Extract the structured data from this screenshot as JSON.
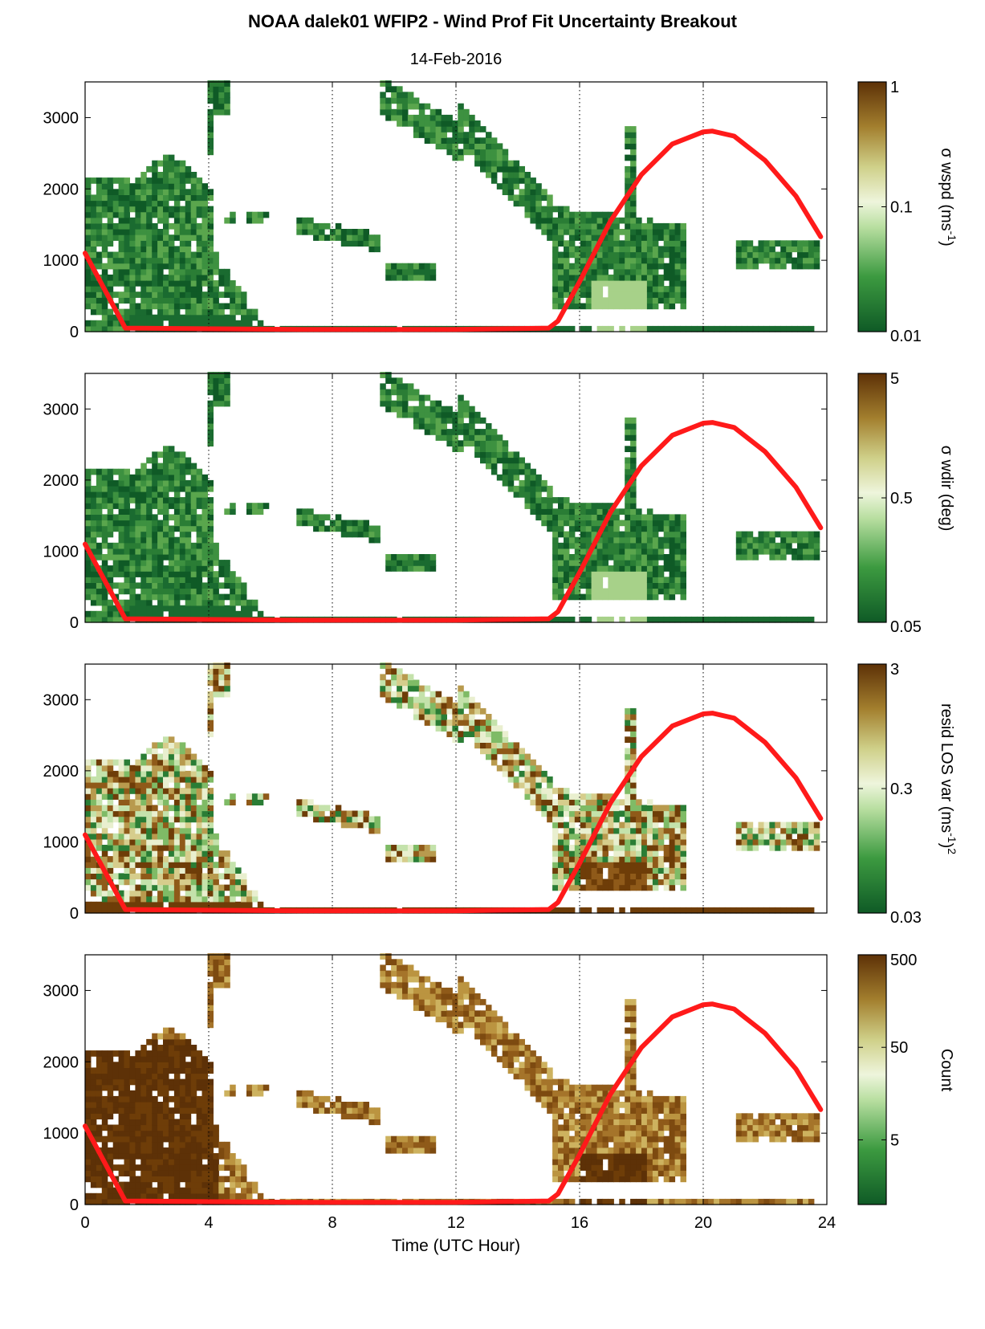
{
  "title": "NOAA dalek01 WFIP2 - Wind Prof Fit Uncertainty Breakout",
  "subtitle": "14-Feb-2016",
  "colors": {
    "dark_green": "#1a6b30",
    "light_green": "#e4f1d2",
    "dark_brown": "#6e3d08",
    "curve_red": "#ff1a1a"
  },
  "chart_data": [
    {
      "type": "heatmap",
      "xlabel": "",
      "ylabel": "",
      "xlim": [
        0,
        24
      ],
      "ylim": [
        0,
        3500
      ],
      "x_ticks": [
        0,
        4,
        8,
        12,
        16,
        20,
        24
      ],
      "y_ticks": [
        0,
        1000,
        2000,
        3000
      ],
      "colorbar": {
        "label": "σ wspd (ms",
        "exp": "-1",
        "tail": ")",
        "scale": "log",
        "min": 0.01,
        "max": 1,
        "ticks": [
          "0.01",
          "0.1",
          "1"
        ]
      },
      "tone": "green",
      "curve": {
        "color": "#ff1a1a",
        "x": [
          0,
          1.3,
          7,
          12,
          15,
          15.3,
          16,
          17,
          18,
          19,
          20,
          20.3,
          21,
          22,
          23,
          23.8
        ],
        "y": [
          1100,
          50,
          30,
          30,
          50,
          150,
          700,
          1550,
          2200,
          2630,
          2800,
          2810,
          2740,
          2400,
          1900,
          1330
        ]
      }
    },
    {
      "type": "heatmap",
      "xlabel": "",
      "ylabel": "",
      "xlim": [
        0,
        24
      ],
      "ylim": [
        0,
        3500
      ],
      "x_ticks": [
        0,
        4,
        8,
        12,
        16,
        20,
        24
      ],
      "y_ticks": [
        0,
        1000,
        2000,
        3000
      ],
      "colorbar": {
        "label": "σ wdir (deg)",
        "exp": "",
        "tail": "",
        "scale": "log",
        "min": 0.05,
        "max": 5,
        "ticks": [
          "0.05",
          "0.5",
          "5"
        ]
      },
      "tone": "green",
      "curve": {
        "color": "#ff1a1a",
        "x": [
          0,
          1.3,
          7,
          12,
          15,
          15.3,
          16,
          17,
          18,
          19,
          20,
          20.3,
          21,
          22,
          23,
          23.8
        ],
        "y": [
          1100,
          50,
          30,
          30,
          50,
          150,
          700,
          1550,
          2200,
          2630,
          2800,
          2810,
          2740,
          2400,
          1900,
          1330
        ]
      }
    },
    {
      "type": "heatmap",
      "xlabel": "",
      "ylabel": "",
      "xlim": [
        0,
        24
      ],
      "ylim": [
        0,
        3500
      ],
      "x_ticks": [
        0,
        4,
        8,
        12,
        16,
        20,
        24
      ],
      "y_ticks": [
        0,
        1000,
        2000,
        3000
      ],
      "colorbar": {
        "label": "resid LOS var (ms",
        "exp": "-1",
        "tail": ")",
        "exp2": "2",
        "scale": "log",
        "min": 0.03,
        "max": 3,
        "ticks": [
          "0.03",
          "0.3",
          "3"
        ]
      },
      "tone": "mixed",
      "curve": {
        "color": "#ff1a1a",
        "x": [
          0,
          1.3,
          7,
          12,
          15,
          15.3,
          16,
          17,
          18,
          19,
          20,
          20.3,
          21,
          22,
          23,
          23.8
        ],
        "y": [
          1100,
          50,
          30,
          30,
          50,
          150,
          700,
          1550,
          2200,
          2630,
          2800,
          2810,
          2740,
          2400,
          1900,
          1330
        ]
      }
    },
    {
      "type": "heatmap",
      "xlabel": "Time (UTC Hour)",
      "ylabel": "",
      "xlim": [
        0,
        24
      ],
      "ylim": [
        0,
        3500
      ],
      "x_ticks": [
        0,
        4,
        8,
        12,
        16,
        20,
        24
      ],
      "y_ticks": [
        0,
        1000,
        2000,
        3000
      ],
      "colorbar": {
        "label": "Count",
        "exp": "",
        "tail": "",
        "scale": "log",
        "min": 1,
        "max": 500,
        "ticks": [
          "5",
          "50",
          "500"
        ]
      },
      "tone": "brown",
      "curve": {
        "color": "#ff1a1a",
        "x": [
          0,
          1.3,
          7,
          12,
          15,
          15.3,
          16,
          17,
          18,
          19,
          20,
          20.3,
          21,
          22,
          23,
          23.8
        ],
        "y": [
          1100,
          50,
          30,
          30,
          50,
          150,
          700,
          1550,
          2200,
          2630,
          2800,
          2810,
          2740,
          2400,
          1900,
          1330
        ]
      }
    }
  ]
}
